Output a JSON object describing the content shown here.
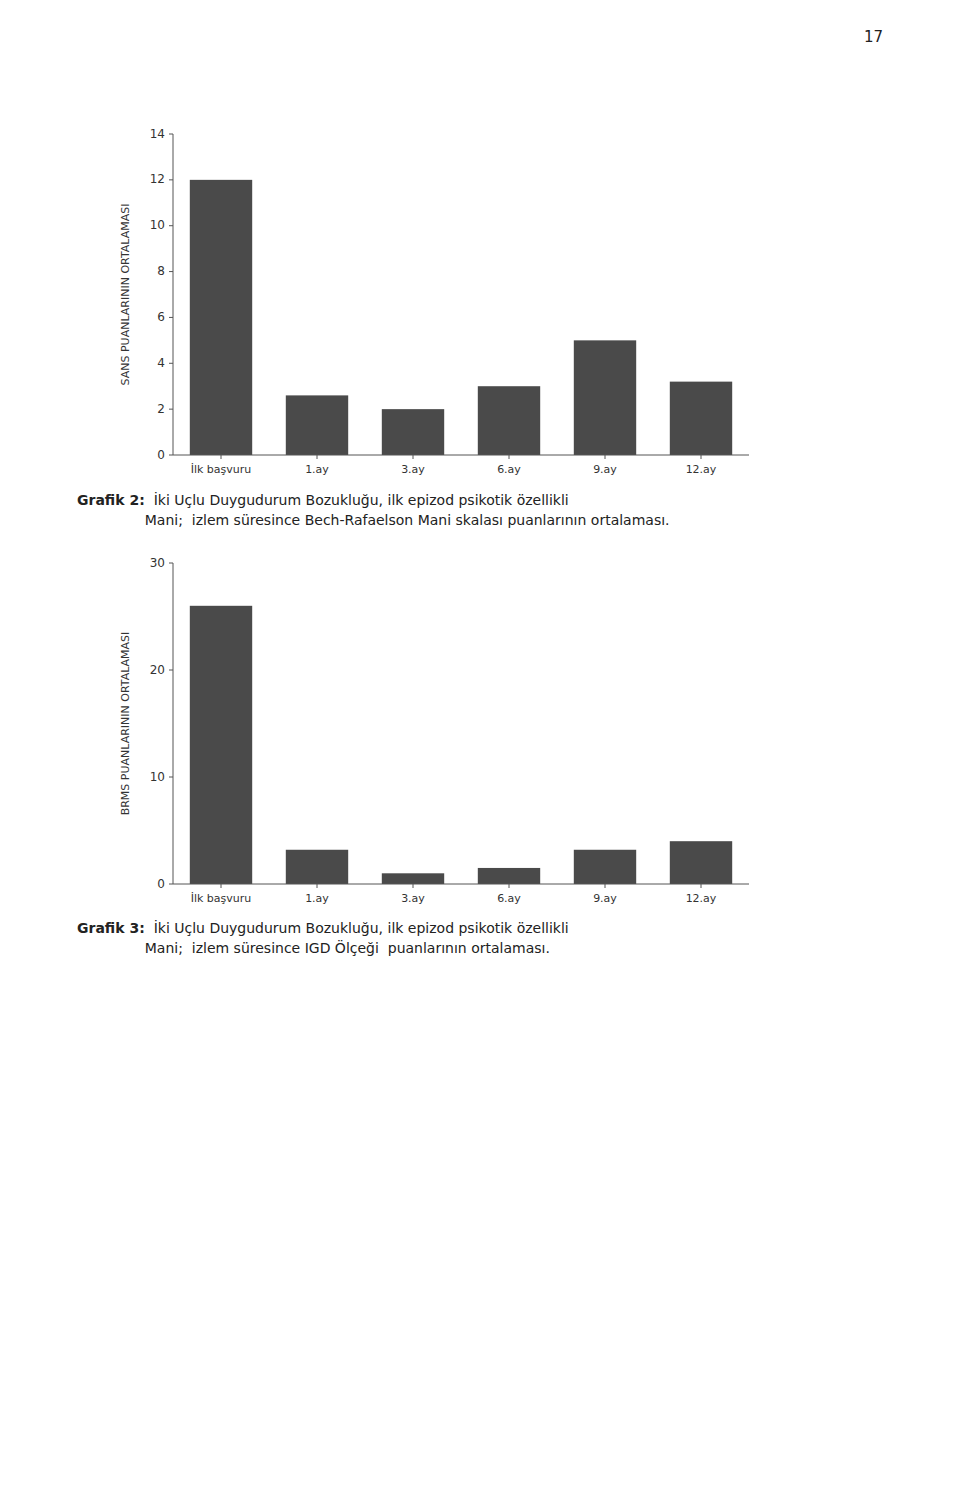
{
  "chart_data": [
    {
      "type": "bar",
      "title": "Grafik 2:",
      "subtitle": "  İki Uçlu Duygudurum Bozukluğu, ilk epizod psikotik özellikli\nMani;  izlem süresince Bech-Rafaelson Mani skalası puanlarının ortalaması.",
      "categories": [
        "İlk başvuru",
        "1.ay",
        "3.ay",
        "6.ay",
        "9.ay",
        "12.ay"
      ],
      "values": [
        12.0,
        2.6,
        2.0,
        3.0,
        5.0,
        3.2
      ],
      "ylabel": "SANS PUANLARININ ORTALAMASI",
      "ylim": [
        0,
        14
      ],
      "yticks": [
        0,
        2,
        4,
        6,
        8,
        10,
        12,
        14
      ],
      "color": "#4a4a4a",
      "grid": false
    },
    {
      "type": "bar",
      "title": "Grafik 3:",
      "subtitle": "  İki Uçlu Duygudurum Bozukluğu, ilk epizod psikotik özellikli\nMani;  izlem süresince IGD Ölçeği  puanlarının ortalaması.",
      "categories": [
        "İlk başvuru",
        "1.ay",
        "3.ay",
        "6.ay",
        "9.ay",
        "12.ay"
      ],
      "values": [
        26.0,
        3.2,
        1.0,
        1.5,
        3.2,
        4.0
      ],
      "ylabel": "BRMS PUANLARININ ORTALAMASI",
      "ylim": [
        0,
        30
      ],
      "yticks": [
        0,
        10,
        20,
        30
      ],
      "color": "#4a4a4a",
      "grid": false
    }
  ],
  "page_number": "17"
}
